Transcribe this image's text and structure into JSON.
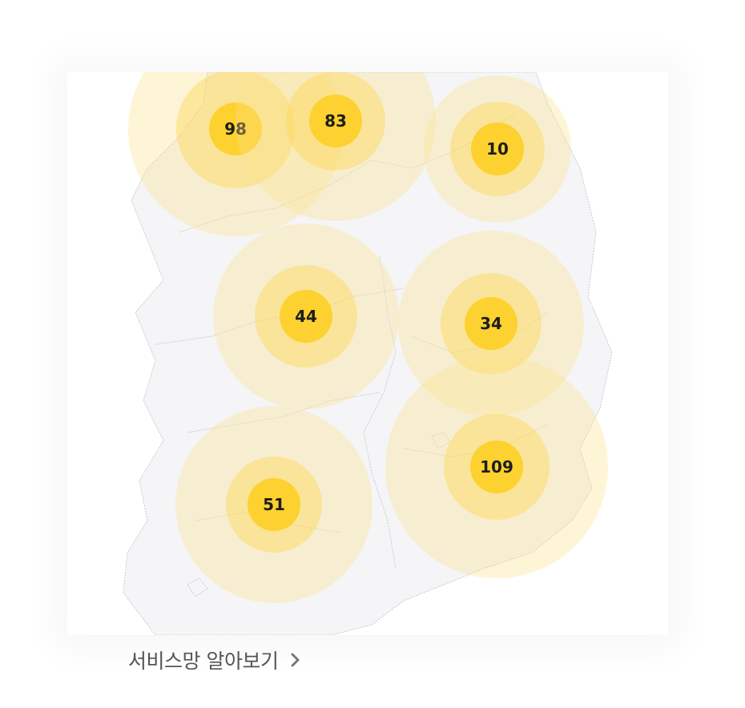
{
  "map": {
    "clusters": [
      {
        "id": "c1",
        "count": "98"
      },
      {
        "id": "c2",
        "count": "83"
      },
      {
        "id": "c3",
        "count": "10"
      },
      {
        "id": "c4",
        "count": "44"
      },
      {
        "id": "c5",
        "count": "34"
      },
      {
        "id": "c6",
        "count": "109"
      },
      {
        "id": "c7",
        "count": "51"
      }
    ],
    "colors": {
      "core": "#fdd12f",
      "mid": "#fde27a",
      "outer": "#fdeeb8",
      "land": "#f4f4f6",
      "border": "#b9b9c0"
    }
  },
  "footer": {
    "link_label": "서비스망 알아보기",
    "icon": "chevron-right-icon"
  }
}
